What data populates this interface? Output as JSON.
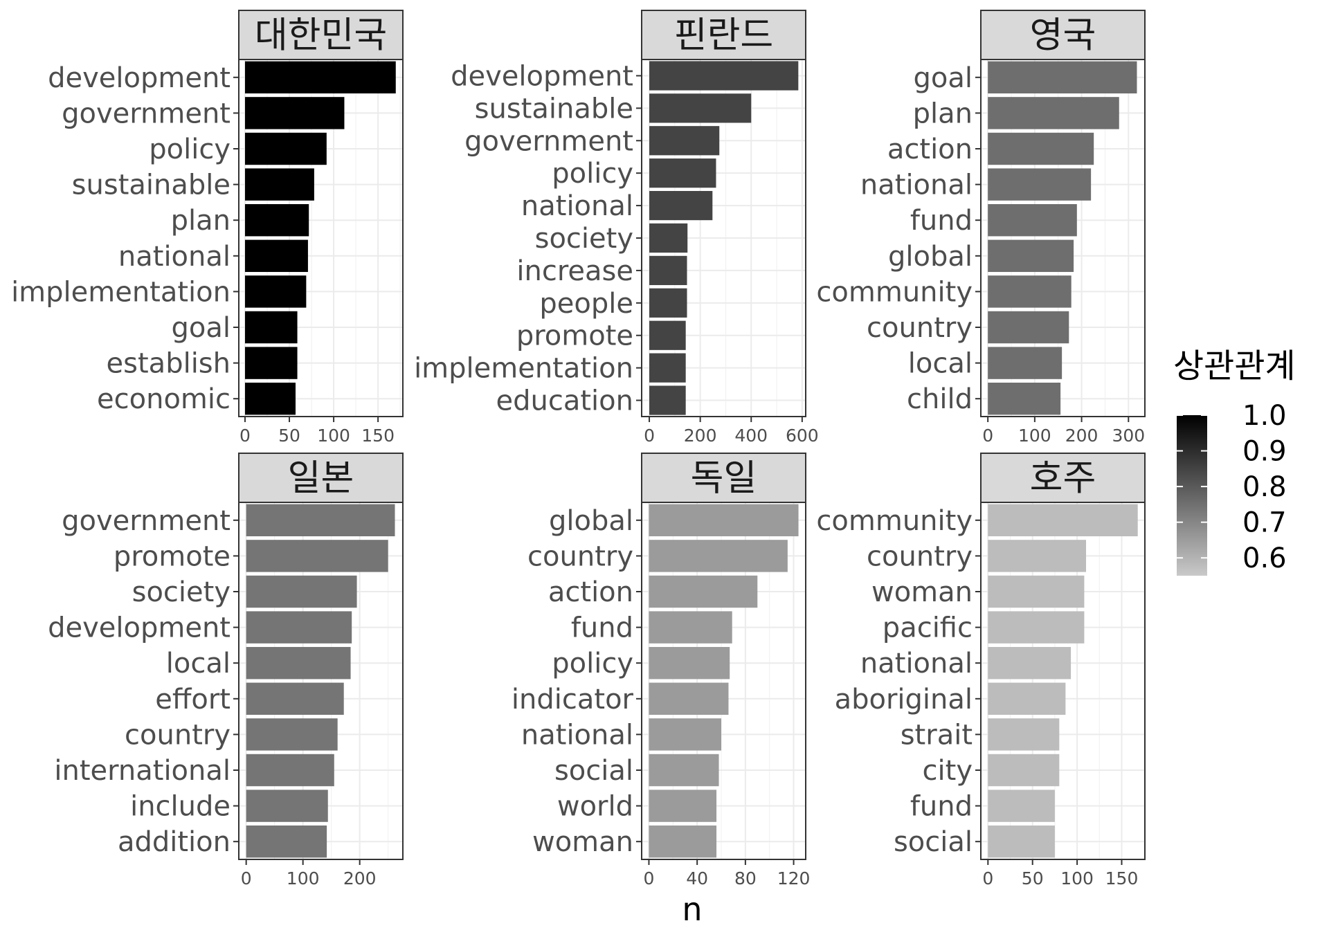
{
  "chart_data": {
    "type": "bar",
    "orientation": "horizontal",
    "xlabel": "n",
    "ylabel": "",
    "grid": true,
    "legend": {
      "title": "상관관계",
      "labels": [
        "1.0",
        "0.9",
        "0.8",
        "0.7",
        "0.6"
      ],
      "position": "right",
      "range": [
        0.55,
        1.0
      ],
      "color_low": "#c9c9c9",
      "color_high": "#000000"
    },
    "facets": [
      {
        "title": "대한민국",
        "correlation": 1.0,
        "bar_color": "#000000",
        "categories": [
          "development",
          "government",
          "policy",
          "sustainable",
          "plan",
          "national",
          "implementation",
          "goal",
          "establish",
          "economic"
        ],
        "values": [
          170,
          112,
          92,
          78,
          72,
          71,
          69,
          59,
          59,
          57
        ],
        "xlim": [
          -7,
          178
        ],
        "ticks": [
          0,
          50,
          100,
          150
        ],
        "tick_labels": [
          "0",
          "50",
          "100",
          "150"
        ]
      },
      {
        "title": "핀란드",
        "correlation": 0.89,
        "bar_color": "#444444",
        "categories": [
          "development",
          "sustainable",
          "government",
          "policy",
          "national",
          "society",
          "increase",
          "people",
          "promote",
          "implementation",
          "education"
        ],
        "values": [
          585,
          400,
          275,
          262,
          248,
          150,
          148,
          148,
          143,
          143,
          143
        ],
        "xlim": [
          -30,
          614
        ],
        "ticks": [
          0,
          200,
          400,
          600
        ],
        "tick_labels": [
          "0",
          "200",
          "400",
          "600"
        ]
      },
      {
        "title": "영국",
        "correlation": 0.79,
        "bar_color": "#6e6e6e",
        "categories": [
          "goal",
          "plan",
          "action",
          "national",
          "fund",
          "global",
          "community",
          "country",
          "local",
          "child"
        ],
        "values": [
          318,
          280,
          226,
          220,
          190,
          183,
          178,
          173,
          158,
          155
        ],
        "xlim": [
          -15,
          335
        ],
        "ticks": [
          0,
          100,
          200,
          300
        ],
        "tick_labels": [
          "0",
          "100",
          "200",
          "300"
        ]
      },
      {
        "title": "일본",
        "correlation": 0.78,
        "bar_color": "#757575",
        "categories": [
          "government",
          "promote",
          "society",
          "development",
          "local",
          "effort",
          "country",
          "international",
          "include",
          "addition"
        ],
        "values": [
          262,
          250,
          195,
          186,
          184,
          172,
          161,
          155,
          144,
          142
        ],
        "xlim": [
          -13,
          276
        ],
        "ticks": [
          0,
          100,
          200
        ],
        "tick_labels": [
          "0",
          "100",
          "200"
        ]
      },
      {
        "title": "독일",
        "correlation": 0.68,
        "bar_color": "#9b9b9b",
        "categories": [
          "global",
          "country",
          "action",
          "fund",
          "policy",
          "indicator",
          "national",
          "social",
          "world",
          "woman"
        ],
        "values": [
          124,
          115,
          90,
          69,
          67,
          66,
          60,
          58,
          56,
          56
        ],
        "xlim": [
          -6,
          130
        ],
        "ticks": [
          0,
          40,
          80,
          120
        ],
        "tick_labels": [
          "0",
          "40",
          "80",
          "120"
        ]
      },
      {
        "title": "호주",
        "correlation": 0.58,
        "bar_color": "#bcbcbc",
        "categories": [
          "community",
          "country",
          "woman",
          "pacific",
          "national",
          "aboriginal",
          "strait",
          "city",
          "fund",
          "social"
        ],
        "values": [
          168,
          110,
          108,
          108,
          93,
          87,
          80,
          80,
          75,
          75
        ],
        "xlim": [
          -8,
          176
        ],
        "ticks": [
          0,
          50,
          100,
          150
        ],
        "tick_labels": [
          "0",
          "50",
          "100",
          "150"
        ]
      }
    ]
  }
}
